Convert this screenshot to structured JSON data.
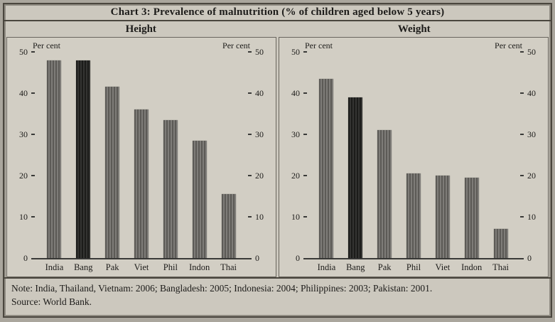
{
  "title": "Chart 3: Prevalence of malnutrition (% of children aged below 5 years)",
  "notes": {
    "note_line": "Note: India, Thailand, Vietnam: 2006; Bangladesh: 2005; Indonesia: 2004; Philippines: 2003; Pakistan: 2001.",
    "source_line": "Source: World Bank."
  },
  "colors": {
    "bar": "#73716c",
    "bar_highlight": "#232321",
    "axis": "#3a3a38",
    "panel_bg": "#d2cec4",
    "page_bg": "#ccc8be",
    "text": "#1c1b19"
  },
  "chart_data": [
    {
      "type": "bar",
      "title": "Height",
      "ylabel": "Per cent",
      "categories": [
        "India",
        "Bang",
        "Pak",
        "Viet",
        "Phil",
        "Indon",
        "Thai"
      ],
      "values": [
        48,
        48,
        41.5,
        36,
        33.5,
        28.5,
        15.5
      ],
      "highlight_category": "Bang",
      "ylim": [
        0,
        50
      ],
      "yticks": [
        0,
        10,
        20,
        30,
        40,
        50
      ],
      "grid": false,
      "legend": "none"
    },
    {
      "type": "bar",
      "title": "Weight",
      "ylabel": "Per cent",
      "categories": [
        "India",
        "Bang",
        "Pak",
        "Phil",
        "Viet",
        "Indon",
        "Thai"
      ],
      "values": [
        43.5,
        39,
        31,
        20.5,
        20,
        19.5,
        7
      ],
      "highlight_category": "Bang",
      "ylim": [
        0,
        50
      ],
      "yticks": [
        0,
        10,
        20,
        30,
        40,
        50
      ],
      "grid": false,
      "legend": "none"
    }
  ]
}
